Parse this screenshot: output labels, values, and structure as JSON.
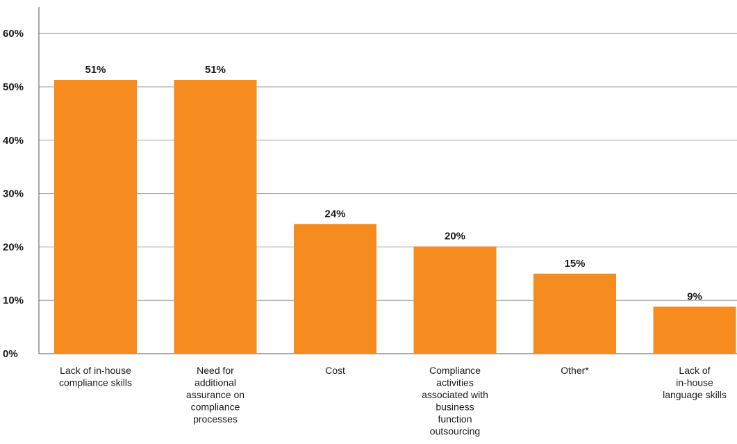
{
  "colors": {
    "bar": "#F68B1F",
    "grid": "#9e9e9e",
    "axis": "#555555",
    "text": "#1a1a1a"
  },
  "chart_data": {
    "type": "bar",
    "categories": [
      [
        "Lack of in-house",
        "compliance skills"
      ],
      [
        "Need for",
        "additional",
        "assurance on",
        "compliance",
        "processes"
      ],
      [
        "Cost"
      ],
      [
        "Compliance",
        "activities",
        "associated with",
        "business",
        "function",
        "outsourcing"
      ],
      [
        "Other*"
      ],
      [
        "Lack of",
        "in-house",
        "language skills"
      ]
    ],
    "values": [
      51.3,
      51.3,
      24.3,
      20.1,
      15.0,
      8.8
    ],
    "data_labels": [
      "51%",
      "51%",
      "24%",
      "20%",
      "15%",
      "9%"
    ],
    "ylim": [
      0,
      65
    ],
    "yticks": [
      0,
      10,
      20,
      30,
      40,
      50,
      60
    ],
    "ytick_labels": [
      "0%",
      "10%",
      "20%",
      "30%",
      "40%",
      "50%",
      "60%"
    ],
    "grid": true,
    "legend": "none"
  }
}
